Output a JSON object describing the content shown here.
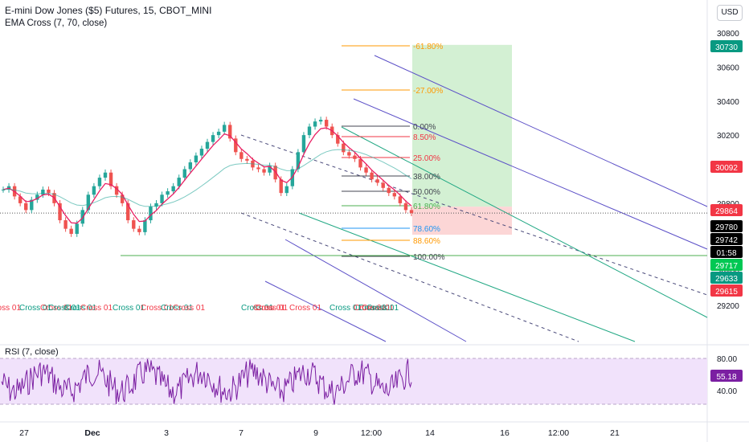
{
  "header": {
    "title": "E-mini Dow Jones ($5) Futures, 15, CBOT_MINI",
    "indicator": "EMA Cross (7, 70, close)",
    "currency": "USD"
  },
  "rsi": {
    "label": "RSI (7, close)",
    "current": "55.18",
    "upper": 80,
    "lower": 40
  },
  "colors": {
    "up": "#26a69a",
    "down": "#ef5350",
    "ema_fast": "#e91e63",
    "ema_slow": "#26a69a",
    "rsi": "#7b1fa2",
    "rsi_band": "#f1e2fb",
    "fib": "#ff9800",
    "pitchfork_outer": "#5b4fc7",
    "pitchfork_inner": "#22a884",
    "pitchfork_dash": "#4a4a7a",
    "target": "#d3f0d3",
    "stop": "#fcd6d6"
  },
  "chart_data": {
    "type": "candlestick",
    "title": "E-mini Dow Jones ($5) Futures, 15, CBOT_MINI",
    "price_axis": {
      "ticks": [
        30800,
        30600,
        30400,
        30200,
        30000,
        29800,
        29400,
        29200
      ],
      "ylim": [
        29140,
        30890
      ]
    },
    "time_axis": {
      "ticks": [
        "27",
        "Dec",
        "3",
        "7",
        "9",
        "12:00",
        "14",
        "16",
        "12:00",
        "21"
      ]
    },
    "close_approx": [
      29880,
      29900,
      29840,
      29800,
      29760,
      29820,
      29850,
      29880,
      29860,
      29800,
      29700,
      29650,
      29620,
      29680,
      29760,
      29850,
      29900,
      29950,
      29980,
      29900,
      29850,
      29800,
      29700,
      29650,
      29630,
      29700,
      29780,
      29800,
      29850,
      29870,
      29900,
      29950,
      30000,
      30040,
      30080,
      30120,
      30160,
      30200,
      30220,
      30260,
      30180,
      30100,
      30060,
      30050,
      30010,
      30000,
      29980,
      30020,
      29940,
      29860,
      29900,
      30000,
      30100,
      30200,
      30250,
      30280,
      30290,
      30250,
      30200,
      30150,
      30100,
      30080,
      30060,
      30010,
      29980,
      29940,
      29920,
      29890,
      29860,
      29840,
      29800,
      29760,
      29742
    ],
    "price_labels": [
      {
        "text": "30730",
        "value": 30730,
        "bg": "#089981",
        "color": "#ffffff"
      },
      {
        "text": "30092",
        "value": 30092,
        "bg": "#f23645",
        "color": "#ffffff"
      },
      {
        "text": "29864",
        "value": 29864,
        "bg": "#f23645",
        "color": "#ffffff"
      },
      {
        "text": "29780",
        "value": 29780,
        "bg": "#000000",
        "color": "#ffffff"
      },
      {
        "text": "29742",
        "value": 29742,
        "bg": "#000000",
        "color": "#ffffff"
      },
      {
        "text": "01:58",
        "value": 29700,
        "bg": "#000000",
        "color": "#ffffff"
      },
      {
        "text": "29717",
        "value": 29717,
        "bg": "#00c853",
        "color": "#ffffff"
      },
      {
        "text": "29633",
        "value": 29633,
        "bg": "#089981",
        "color": "#ffffff"
      },
      {
        "text": "29615",
        "value": 29615,
        "bg": "#f23645",
        "color": "#ffffff"
      }
    ],
    "fibonacci": [
      {
        "label": "-61.80%",
        "color": "#ff9800"
      },
      {
        "label": "-27.00%",
        "color": "#ff9800"
      },
      {
        "label": "0.00%",
        "color": "#434651"
      },
      {
        "label": "8.50%",
        "color": "#f23645"
      },
      {
        "label": "25.00%",
        "color": "#f23645"
      },
      {
        "label": "38.00%",
        "color": "#434651"
      },
      {
        "label": "50.00%",
        "color": "#434651"
      },
      {
        "label": "61.80%",
        "color": "#4caf50"
      },
      {
        "label": "78.60%",
        "color": "#2196f3"
      },
      {
        "label": "88.60%",
        "color": "#ff9800"
      },
      {
        "label": "100.00%",
        "color": "#434651"
      }
    ],
    "cross_labels": [
      {
        "text": "Cross 01",
        "color": "#f23645"
      },
      {
        "text": "Cross 01",
        "color": "#089981"
      },
      {
        "text": "Cross 01",
        "color": "#f23645"
      },
      {
        "text": "Cross 01",
        "color": "#089981"
      },
      {
        "text": "Cross 01",
        "color": "#089981"
      },
      {
        "text": "Cross 01",
        "color": "#f23645"
      },
      {
        "text": "Cross 01",
        "color": "#089981"
      },
      {
        "text": "Cross 01",
        "color": "#f23645"
      },
      {
        "text": "Cross 01",
        "color": "#089981"
      },
      {
        "text": "Cross 01",
        "color": "#f23645"
      },
      {
        "text": "Cross 01",
        "color": "#089981"
      },
      {
        "text": "Cross 01",
        "color": "#f23645"
      },
      {
        "text": "Cross 01",
        "color": "#f23645"
      },
      {
        "text": "Cross 01",
        "color": "#f23645"
      },
      {
        "text": "Cross 01",
        "color": "#089981"
      },
      {
        "text": "Cross 01",
        "color": "#f23645"
      },
      {
        "text": "Cross 01",
        "color": "#089981"
      },
      {
        "text": "Cross 01",
        "color": "#f23645"
      },
      {
        "text": "Cross 01",
        "color": "#089981"
      }
    ],
    "rsi_axis": {
      "ticks": [
        "80.00",
        "40.00"
      ]
    }
  }
}
